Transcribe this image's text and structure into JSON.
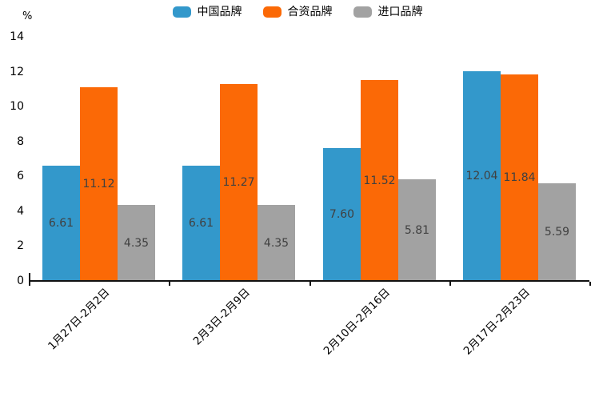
{
  "chart_data": {
    "type": "bar",
    "title": "",
    "xlabel": "",
    "ylabel": "%",
    "ylim": [
      0,
      14
    ],
    "ytick_step": 2,
    "grid": false,
    "legend_position": "top",
    "categories": [
      "1月27日-2月2日",
      "2月3日-2月9日",
      "2月10日-2月16日",
      "2月17日-2月23日"
    ],
    "series": [
      {
        "name": "中国品牌",
        "color": "#3398CB",
        "values": [
          6.61,
          6.61,
          7.6,
          12.04
        ]
      },
      {
        "name": "合资品牌",
        "color": "#FB6906",
        "values": [
          11.12,
          11.27,
          11.52,
          11.84
        ]
      },
      {
        "name": "进口品牌",
        "color": "#A2A2A2",
        "values": [
          4.35,
          4.35,
          5.81,
          5.59
        ]
      }
    ],
    "value_label_decimals": 2,
    "value_label_color": "#404040"
  }
}
